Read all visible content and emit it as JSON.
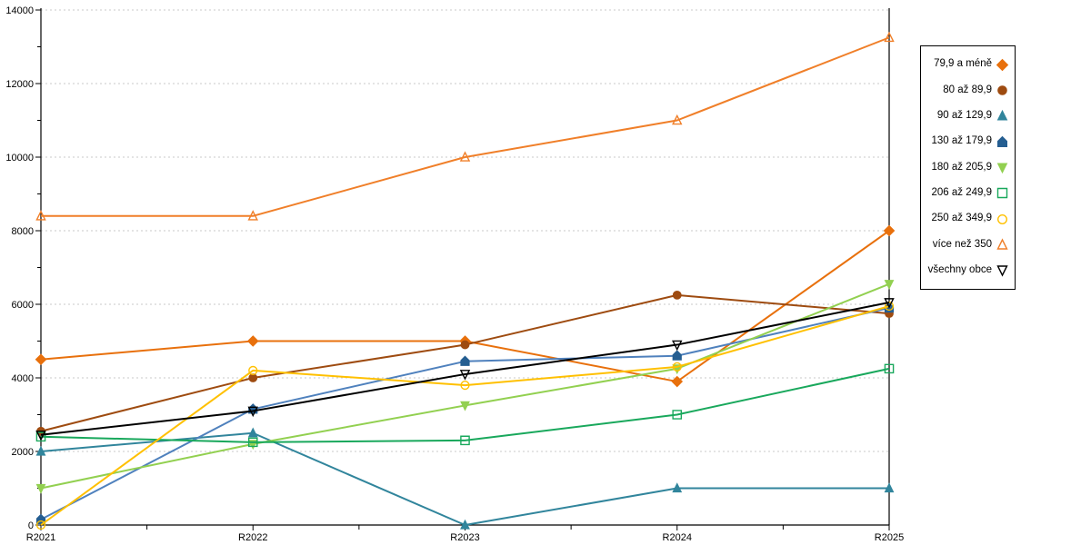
{
  "chart_data": {
    "type": "line",
    "title": "",
    "xlabel": "",
    "ylabel": "",
    "x": [
      "R2021",
      "R2022",
      "R2023",
      "R2024",
      "R2025"
    ],
    "yticks": [
      0,
      2000,
      4000,
      6000,
      8000,
      10000,
      12000,
      14000
    ],
    "ylim": [
      0,
      14000
    ],
    "grid": "horizontal dashed",
    "legend_position": "right",
    "series": [
      {
        "name": "79,9 a méně",
        "marker": "diamond",
        "fill": "filled",
        "color": "#E8700C",
        "line_color": "#E8700C",
        "values": [
          4500,
          5000,
          5000,
          3900,
          8000
        ]
      },
      {
        "name": "80 až 89,9",
        "marker": "circle",
        "fill": "filled",
        "color": "#9E4B10",
        "line_color": "#9E4B10",
        "values": [
          2550,
          4000,
          4900,
          6250,
          5750
        ]
      },
      {
        "name": "90 až 129,9",
        "marker": "triangle-up",
        "fill": "filled",
        "color": "#31859C",
        "line_color": "#31859C",
        "values": [
          2000,
          2500,
          0,
          1000,
          1000
        ]
      },
      {
        "name": "130 až 179,9",
        "marker": "pentagon",
        "fill": "filled",
        "color": "#255E91",
        "line_color": "#4F81BD",
        "values": [
          150,
          3150,
          4450,
          4600,
          5900
        ]
      },
      {
        "name": "180 až 205,9",
        "marker": "triangle-down",
        "fill": "filled",
        "color": "#92D050",
        "line_color": "#92D050",
        "values": [
          1000,
          2200,
          3250,
          4250,
          6550
        ]
      },
      {
        "name": "206 až 249,9",
        "marker": "square",
        "fill": "open",
        "color": "#19A85C",
        "line_color": "#19A85C",
        "values": [
          2400,
          2250,
          2300,
          3000,
          4250
        ]
      },
      {
        "name": "250 až 349,9",
        "marker": "circle",
        "fill": "open",
        "color": "#FFC000",
        "line_color": "#FFC000",
        "values": [
          0,
          4200,
          3800,
          4300,
          5950
        ]
      },
      {
        "name": "více než 350",
        "marker": "triangle-up",
        "fill": "open",
        "color": "#F07F29",
        "line_color": "#F07F29",
        "values": [
          8400,
          8400,
          10000,
          11000,
          13250
        ]
      },
      {
        "name": "všechny obce",
        "marker": "triangle-down",
        "fill": "open",
        "color": "#000000",
        "line_color": "#000000",
        "values": [
          2450,
          3100,
          4100,
          4900,
          6050
        ]
      }
    ]
  },
  "layout_colors": {
    "grid": "#C9C9C9",
    "axis": "#000000",
    "background": "#FFFFFF"
  }
}
